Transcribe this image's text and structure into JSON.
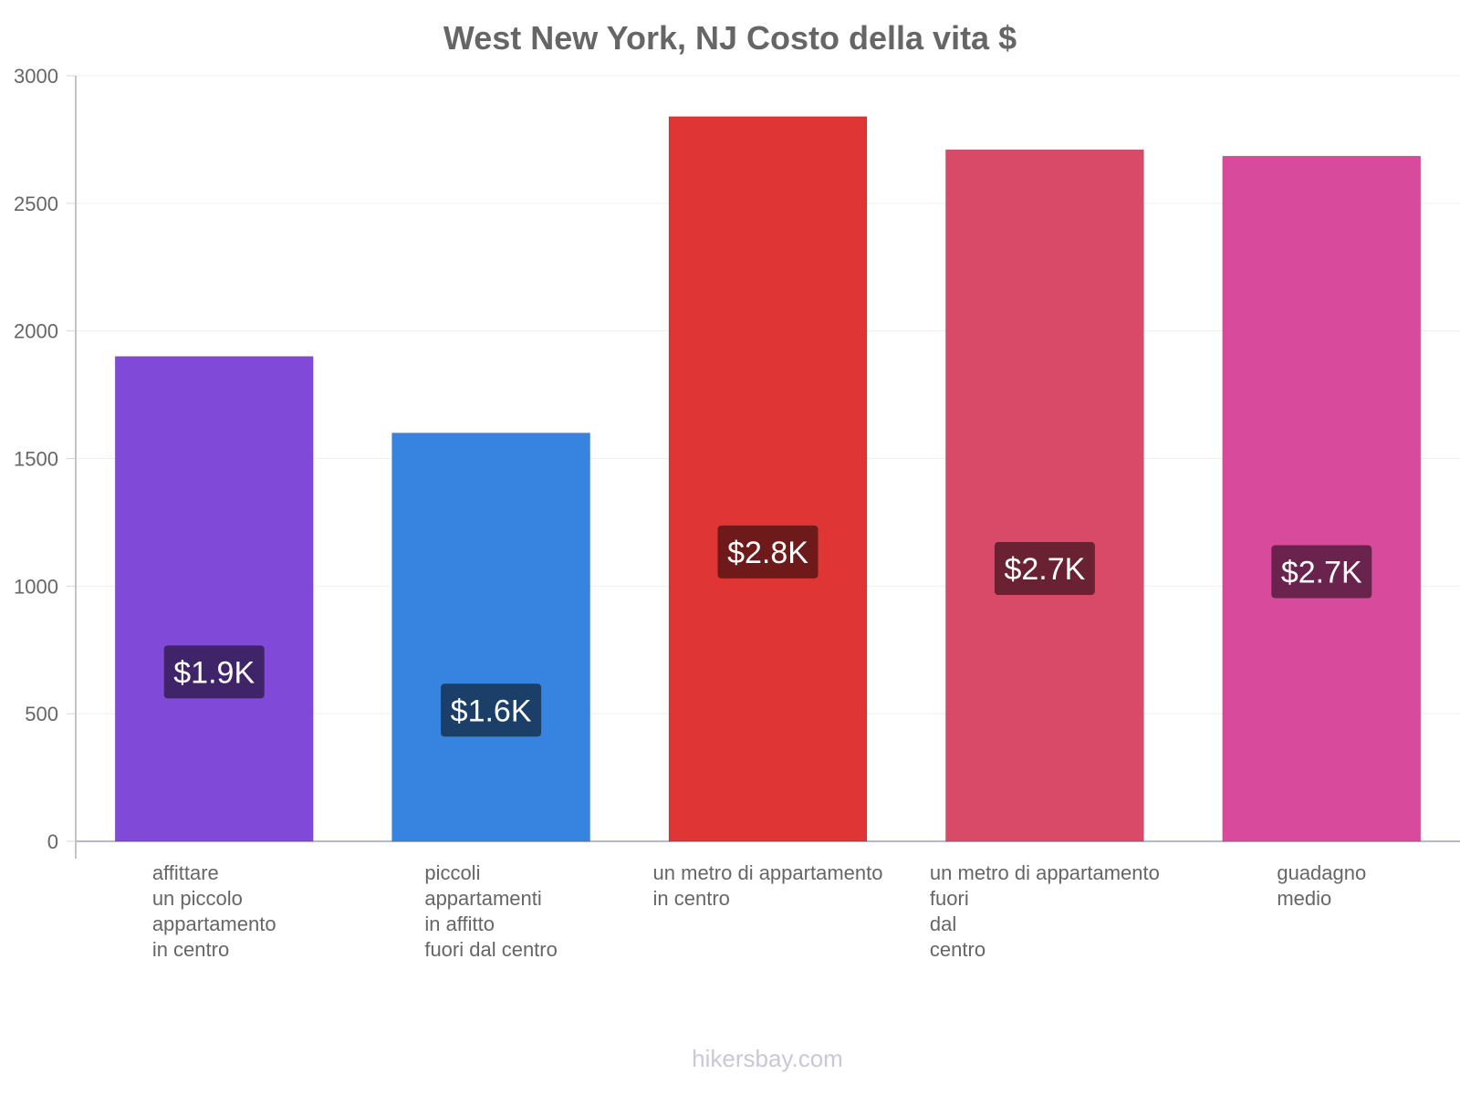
{
  "chart_data": {
    "type": "bar",
    "title": "West New York, NJ Costo della vita $",
    "xlabel": "",
    "ylabel": "",
    "ylim": [
      0,
      3000
    ],
    "yticks": [
      0,
      500,
      1000,
      1500,
      2000,
      2500,
      3000
    ],
    "grid": true,
    "categories": [
      [
        "affittare",
        "un piccolo",
        "appartamento",
        "in centro"
      ],
      [
        "piccoli",
        "appartamenti",
        "in affitto",
        "fuori dal centro"
      ],
      [
        "un metro di appartamento",
        "in centro"
      ],
      [
        "un metro di appartamento",
        "fuori",
        "dal",
        "centro"
      ],
      [
        "guadagno",
        "medio"
      ]
    ],
    "values": [
      1900,
      1600,
      2840,
      2710,
      2685
    ],
    "value_labels": [
      "$1.9K",
      "$1.6K",
      "$2.8K",
      "$2.7K",
      "$2.7K"
    ],
    "bar_colors": [
      "#8049d8",
      "#3784e0",
      "#e03535",
      "#d84a67",
      "#d84a9b"
    ],
    "label_bg_colors": [
      "#3f2469",
      "#1b3f69",
      "#6e1a1a",
      "#6a2233",
      "#6a234c"
    ]
  },
  "watermark": "hikersbay.com"
}
